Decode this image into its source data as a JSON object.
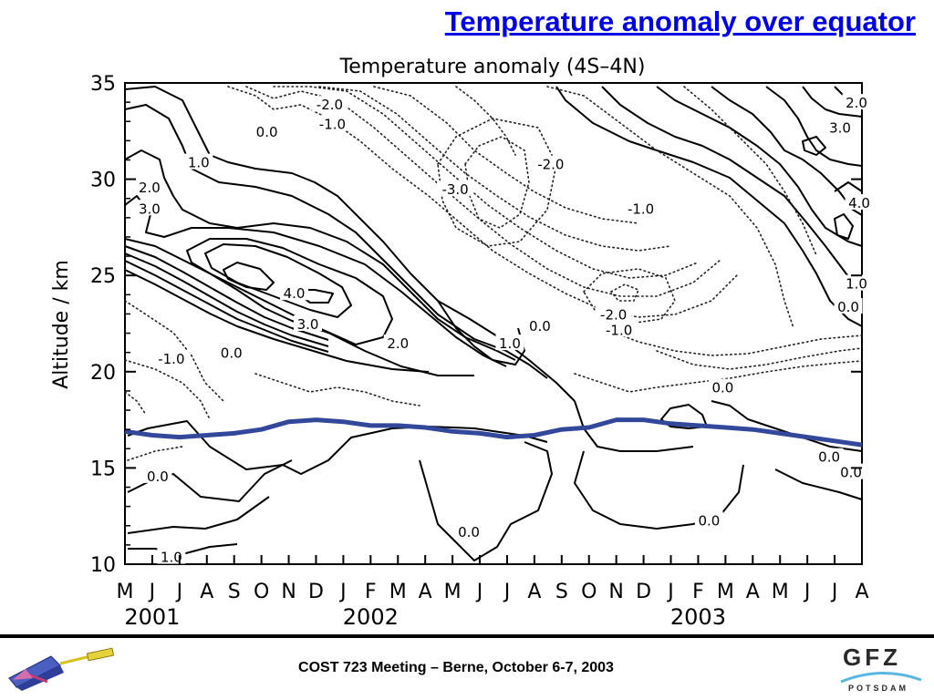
{
  "slide": {
    "title": "Temperature anomaly over equator",
    "footer": "COST 723 Meeting – Berne, October 6-7, 2003",
    "logo_text": "GFZ",
    "logo_subtext": "POTSDAM",
    "title_color": "#0000e6"
  },
  "chart_data": {
    "type": "contour",
    "title": "Temperature anomaly (4S–4N)",
    "ylabel": "Altitude / km",
    "xlabel": "",
    "ylim": [
      10,
      35
    ],
    "y_ticks": [
      "10",
      "15",
      "20",
      "25",
      "30",
      "35"
    ],
    "months": [
      "M",
      "J",
      "J",
      "A",
      "S",
      "O",
      "N",
      "D",
      "J",
      "F",
      "M",
      "A",
      "M",
      "J",
      "J",
      "A",
      "S",
      "O",
      "N",
      "D",
      "J",
      "F",
      "M",
      "A",
      "M",
      "J",
      "J",
      "A"
    ],
    "years": [
      {
        "label": "2001",
        "month_index": 1
      },
      {
        "label": "2002",
        "month_index": 9
      },
      {
        "label": "2003",
        "month_index": 21
      }
    ],
    "contour_labels": [
      {
        "text": "-2.0",
        "month": 7.5,
        "alt": 33.9
      },
      {
        "text": "-1.0",
        "month": 7.6,
        "alt": 32.9
      },
      {
        "text": "0.0",
        "month": 5.2,
        "alt": 32.5
      },
      {
        "text": "1.0",
        "month": 2.7,
        "alt": 30.9
      },
      {
        "text": "2.0",
        "month": 0.9,
        "alt": 29.6
      },
      {
        "text": "3.0",
        "month": 0.9,
        "alt": 28.5
      },
      {
        "text": "4.0",
        "month": 6.2,
        "alt": 24.1
      },
      {
        "text": "3.0",
        "month": 6.7,
        "alt": 22.5
      },
      {
        "text": "2.0",
        "month": 10.0,
        "alt": 21.5
      },
      {
        "text": "1.0",
        "month": 14.1,
        "alt": 21.5
      },
      {
        "text": "0.0",
        "month": 15.2,
        "alt": 22.4
      },
      {
        "text": "-1.0",
        "month": 1.7,
        "alt": 20.7
      },
      {
        "text": "0.0",
        "month": 3.9,
        "alt": 21.0
      },
      {
        "text": "-3.0",
        "month": 12.1,
        "alt": 29.5
      },
      {
        "text": "-2.0",
        "month": 15.6,
        "alt": 30.8
      },
      {
        "text": "-1.0",
        "month": 18.9,
        "alt": 28.5
      },
      {
        "text": "-2.0",
        "month": 17.9,
        "alt": 23.0
      },
      {
        "text": "-1.0",
        "month": 18.1,
        "alt": 22.2
      },
      {
        "text": "0.0",
        "month": 21.9,
        "alt": 19.2
      },
      {
        "text": "0.0",
        "month": 25.8,
        "alt": 15.6
      },
      {
        "text": "0.0",
        "month": 26.6,
        "alt": 14.8
      },
      {
        "text": "0.0",
        "month": 26.5,
        "alt": 23.4
      },
      {
        "text": "1.0",
        "month": 26.8,
        "alt": 24.6
      },
      {
        "text": "2.0",
        "month": 26.8,
        "alt": 34.0
      },
      {
        "text": "3.0",
        "month": 26.2,
        "alt": 32.7
      },
      {
        "text": "4.0",
        "month": 26.9,
        "alt": 28.8
      },
      {
        "text": "0.0",
        "month": 1.2,
        "alt": 14.6
      },
      {
        "text": "1.0",
        "month": 1.7,
        "alt": 10.4
      },
      {
        "text": "0.0",
        "month": 12.6,
        "alt": 11.7
      },
      {
        "text": "0.0",
        "month": 21.4,
        "alt": 12.3
      }
    ],
    "tropopause": {
      "month": [
        0,
        1,
        2,
        3,
        4,
        5,
        6,
        7,
        8,
        9,
        10,
        11,
        12,
        13,
        14,
        15,
        16,
        17,
        18,
        19,
        20,
        21,
        22,
        23,
        24,
        25,
        26,
        27
      ],
      "alt": [
        16.9,
        16.7,
        16.6,
        16.7,
        16.8,
        17.0,
        17.4,
        17.5,
        17.4,
        17.2,
        17.2,
        17.1,
        16.9,
        16.8,
        16.6,
        16.7,
        17.0,
        17.1,
        17.5,
        17.5,
        17.3,
        17.2,
        17.1,
        17.0,
        16.8,
        16.6,
        16.4,
        16.2
      ],
      "color": "#33489a"
    }
  }
}
